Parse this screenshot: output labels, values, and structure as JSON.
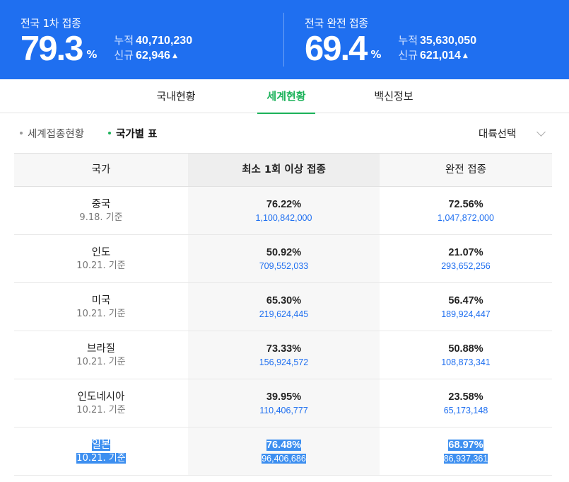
{
  "header": {
    "first_dose": {
      "title": "전국 1차 접종",
      "rate": "79.3",
      "unit": "%",
      "cumulative_label": "누적",
      "cumulative_value": "40,710,230",
      "new_label": "신규",
      "new_value": "62,946"
    },
    "full_dose": {
      "title": "전국 완전 접종",
      "rate": "69.4",
      "unit": "%",
      "cumulative_label": "누적",
      "cumulative_value": "35,630,050",
      "new_label": "신규",
      "new_value": "621,014"
    },
    "colors": {
      "banner": "#1f6ff0",
      "accent_green": "#1cb25a",
      "link_blue": "#1f6ff0"
    }
  },
  "tabs": [
    {
      "label": "국내현황",
      "active": false
    },
    {
      "label": "세계현황",
      "active": true
    },
    {
      "label": "백신정보",
      "active": false
    }
  ],
  "subnav": {
    "items": [
      {
        "label": "세계접종현황",
        "active": false
      },
      {
        "label": "국가별 표",
        "active": true
      }
    ],
    "select_label": "대륙선택"
  },
  "table": {
    "headers": [
      "국가",
      "최소 1회 이상 접종",
      "완전 접종"
    ],
    "rows": [
      {
        "country": "중국",
        "date": "9.18. 기준",
        "first_pct": "76.22%",
        "first_num": "1,100,842,000",
        "full_pct": "72.56%",
        "full_num": "1,047,872,000"
      },
      {
        "country": "인도",
        "date": "10.21. 기준",
        "first_pct": "50.92%",
        "first_num": "709,552,033",
        "full_pct": "21.07%",
        "full_num": "293,652,256"
      },
      {
        "country": "미국",
        "date": "10.21. 기준",
        "first_pct": "65.30%",
        "first_num": "219,624,445",
        "full_pct": "56.47%",
        "full_num": "189,924,447"
      },
      {
        "country": "브라질",
        "date": "10.21. 기준",
        "first_pct": "73.33%",
        "first_num": "156,924,572",
        "full_pct": "50.88%",
        "full_num": "108,873,341"
      },
      {
        "country": "인도네시아",
        "date": "10.21. 기준",
        "first_pct": "39.95%",
        "first_num": "110,406,777",
        "full_pct": "23.58%",
        "full_num": "65,173,148"
      },
      {
        "country": "일본",
        "date": "10.21. 기준",
        "first_pct": "76.48%",
        "first_num": "96,406,686",
        "full_pct": "68.97%",
        "full_num": "86,937,361"
      }
    ]
  }
}
